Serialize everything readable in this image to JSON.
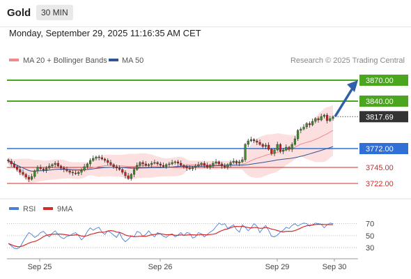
{
  "header": {
    "title": "Gold",
    "interval": "30 MIN",
    "datetime": "Monday, September 29, 2025 11:16:35 AM CET"
  },
  "chart_data": {
    "type": "candlestick",
    "instrument": "Gold",
    "timeframe": "30 MIN",
    "legend": [
      {
        "name": "MA 20 + Bollinger Bands",
        "color": "#f08a8a"
      },
      {
        "name": "MA 50",
        "color": "#2f5597"
      }
    ],
    "source": "Research © 2025 Trading Central",
    "ylim": [
      3700,
      3890
    ],
    "x_ticks": [
      "Sep 25",
      "Sep 26",
      "Sep 29",
      "Sep 30"
    ],
    "current_price": 3817.69,
    "levels": [
      {
        "value": 3870.0,
        "label": "3870.00",
        "kind": "target",
        "color": "#4aa51f"
      },
      {
        "value": 3840.0,
        "label": "3840.00",
        "kind": "target",
        "color": "#4aa51f"
      },
      {
        "value": 3817.69,
        "label": "3817.69",
        "kind": "current",
        "color": "#333333"
      },
      {
        "value": 3772.0,
        "label": "3772.00",
        "kind": "pivot",
        "color": "#2f6fd6"
      },
      {
        "value": 3745.0,
        "label": "3745.00",
        "kind": "support",
        "color": "#d42a2a"
      },
      {
        "value": 3722.0,
        "label": "3722.00",
        "kind": "support",
        "color": "#d42a2a"
      }
    ],
    "close": [
      3754,
      3750,
      3746,
      3742,
      3738,
      3735,
      3731,
      3728,
      3732,
      3740,
      3745,
      3743,
      3741,
      3744,
      3747,
      3749,
      3751,
      3747,
      3744,
      3742,
      3740,
      3738,
      3737,
      3736,
      3738,
      3741,
      3746,
      3750,
      3755,
      3758,
      3760,
      3759,
      3757,
      3755,
      3752,
      3749,
      3746,
      3744,
      3742,
      3738,
      3733,
      3729,
      3735,
      3742,
      3748,
      3752,
      3750,
      3748,
      3749,
      3751,
      3752,
      3750,
      3748,
      3746,
      3749,
      3750,
      3752,
      3753,
      3751,
      3748,
      3746,
      3744,
      3743,
      3745,
      3747,
      3749,
      3751,
      3748,
      3745,
      3748,
      3751,
      3753,
      3750,
      3747,
      3745,
      3749,
      3752,
      3754,
      3751,
      3753,
      3756,
      3778,
      3783,
      3785,
      3783,
      3781,
      3778,
      3775,
      3777,
      3771,
      3765,
      3770,
      3778,
      3768,
      3770,
      3774,
      3771,
      3778,
      3786,
      3798,
      3800,
      3803,
      3808,
      3806,
      3811,
      3815,
      3813,
      3818,
      3820,
      3812,
      3815,
      3817.69
    ],
    "rsi": {
      "levels": [
        70,
        50,
        30
      ],
      "legend": [
        {
          "name": "RSI",
          "color": "#4a7fd4"
        },
        {
          "name": "9MA",
          "color": "#d42a2a"
        }
      ],
      "values": [
        37,
        33,
        29,
        28,
        31,
        40,
        48,
        55,
        52,
        47,
        50,
        55,
        57,
        52,
        48,
        54,
        58,
        52,
        47,
        45,
        49,
        50,
        53,
        55,
        50,
        43,
        48,
        57,
        63,
        59,
        62,
        64,
        56,
        52,
        58,
        55,
        51,
        47,
        55,
        45,
        40,
        44,
        49,
        48,
        57,
        55,
        49,
        52,
        58,
        52,
        48,
        55,
        53,
        49,
        47,
        51,
        53,
        48,
        51,
        55,
        50,
        55,
        54,
        46,
        48,
        55,
        53,
        48,
        52,
        56,
        59,
        65,
        71,
        68,
        70,
        62,
        65,
        68,
        60,
        56,
        68,
        64,
        58,
        63,
        70,
        66,
        55,
        62,
        67,
        59,
        49,
        48,
        51,
        56,
        59,
        64,
        62,
        67,
        70,
        66,
        69,
        71,
        70,
        66,
        68,
        71,
        70,
        69,
        63,
        68,
        71,
        70
      ]
    }
  }
}
